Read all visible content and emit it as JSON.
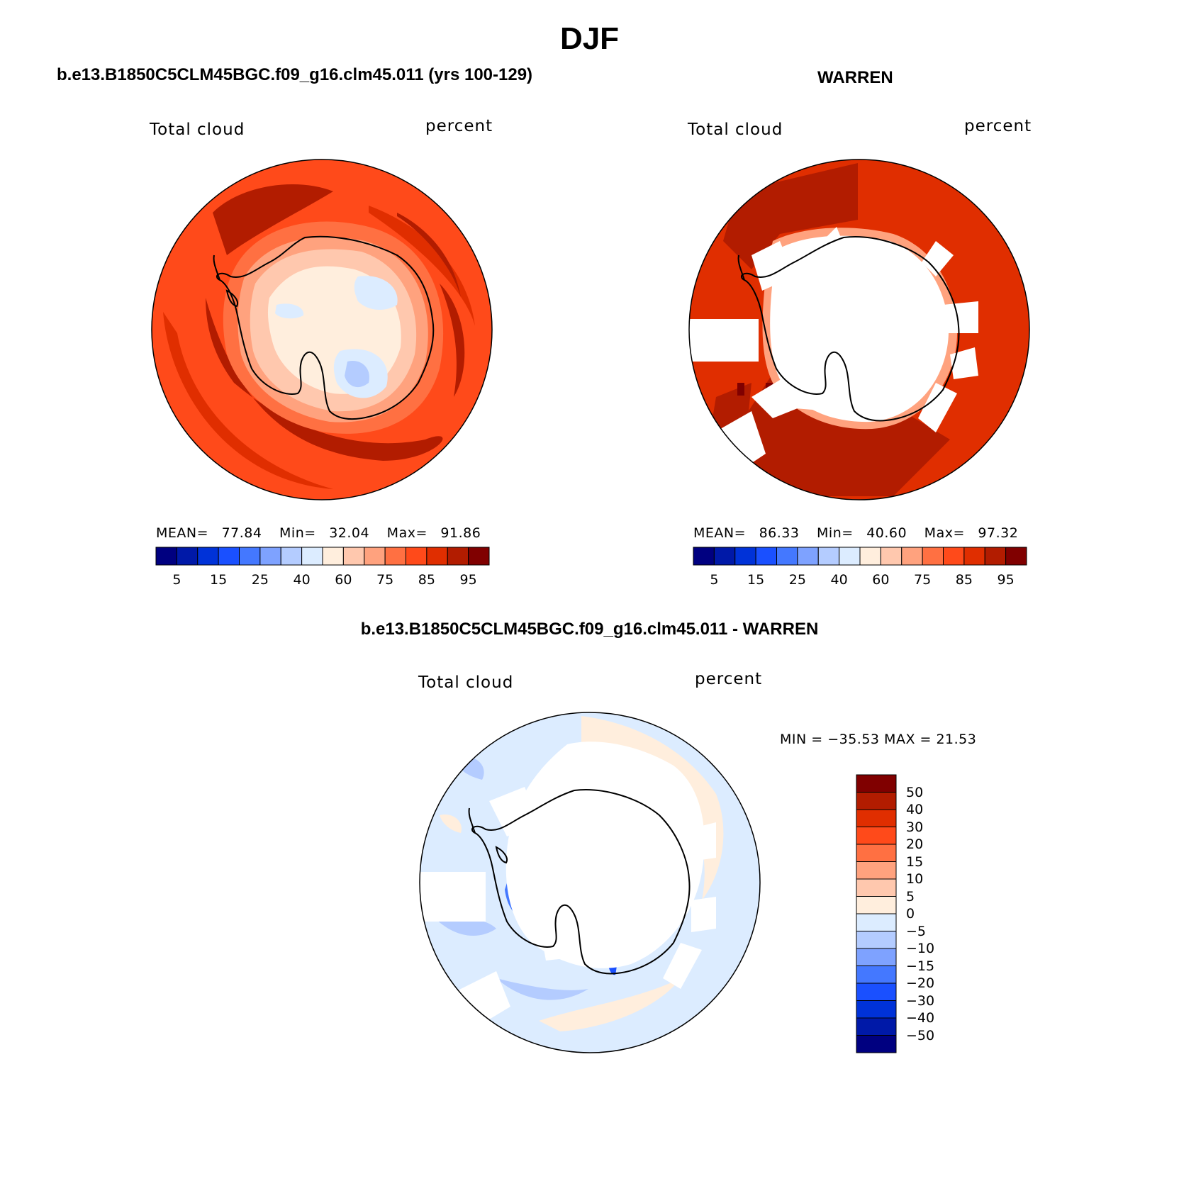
{
  "title": "DJF",
  "panels": {
    "model": {
      "case_title": "b.e13.B1850C5CLM45BGC.f09_g16.clm45.011 (yrs 100-129)",
      "variable": "Total cloud",
      "units": "percent",
      "stats": {
        "mean_label": "MEAN=",
        "mean": "77.84",
        "min_label": "Min=",
        "min": "32.04",
        "max_label": "Max=",
        "max": "91.86"
      }
    },
    "obs": {
      "case_title": "WARREN",
      "variable": "Total cloud",
      "units": "percent",
      "stats": {
        "mean_label": "MEAN=",
        "mean": "86.33",
        "min_label": "Min=",
        "min": "40.60",
        "max_label": "Max=",
        "max": "97.32"
      }
    },
    "diff": {
      "case_title": "b.e13.B1850C5CLM45BGC.f09_g16.clm45.011 - WARREN",
      "variable": "Total cloud",
      "units": "percent",
      "minmax": "MIN = −35.53 MAX =  21.53"
    }
  },
  "abs_colorbar": {
    "colors": [
      "#000080",
      "#0019a8",
      "#0032d8",
      "#1a50ff",
      "#4478ff",
      "#7ea2ff",
      "#b4ccff",
      "#dcecff",
      "#ffeedd",
      "#ffc8ae",
      "#ffa27e",
      "#ff7042",
      "#ff4a1a",
      "#e02e00",
      "#b21c00",
      "#800000"
    ],
    "tick_labels": [
      "5",
      "15",
      "25",
      "40",
      "60",
      "75",
      "85",
      "95"
    ]
  },
  "diff_colorbar": {
    "colors": [
      "#000080",
      "#0019a8",
      "#0032d8",
      "#1a50ff",
      "#4478ff",
      "#7ea2ff",
      "#b4ccff",
      "#dcecff",
      "#ffeedd",
      "#ffc8ae",
      "#ffa27e",
      "#ff7042",
      "#ff4a1a",
      "#e02e00",
      "#b21c00",
      "#800000"
    ],
    "tick_labels": [
      "50",
      "40",
      "30",
      "20",
      "15",
      "10",
      "5",
      "0",
      "−5",
      "−10",
      "−15",
      "−20",
      "−30",
      "−40",
      "−50"
    ]
  }
}
